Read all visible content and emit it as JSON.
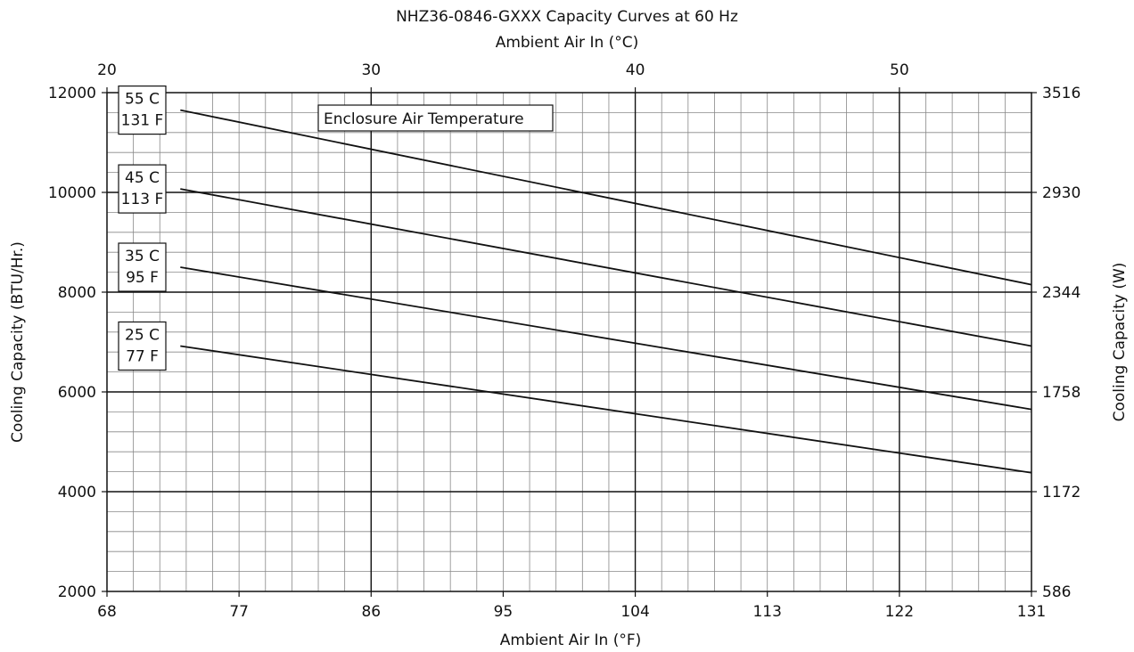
{
  "chart_data": {
    "type": "line",
    "title": "NHZ36-0846-GXXX Capacity Curves at 60 Hz",
    "top_xlabel": "Ambient Air In (°C)",
    "top_ticks": [
      "20",
      "30",
      "40",
      "50"
    ],
    "top_tick_values_f": [
      68,
      86,
      104,
      122
    ],
    "xlabel": "Ambient Air In (°F)",
    "x_ticks": [
      "68",
      "77",
      "86",
      "95",
      "104",
      "113",
      "122",
      "131"
    ],
    "xlim": [
      68,
      131
    ],
    "ylabel": "Cooling Capacity (BTU/Hr.)",
    "y_ticks": [
      "2000",
      "4000",
      "6000",
      "8000",
      "10000",
      "12000"
    ],
    "ylim": [
      2000,
      12000
    ],
    "right_ylabel": "Cooling Capacity (W)",
    "right_ticks": [
      "586",
      "1172",
      "1758",
      "2344",
      "2930",
      "3516"
    ],
    "grid": true,
    "annotation": "Enclosure Air Temperature",
    "series": [
      {
        "name": "55 C\n131 F",
        "x": [
          73,
          131
        ],
        "y": [
          11650,
          8150
        ]
      },
      {
        "name": "45 C\n113 F",
        "x": [
          73,
          131
        ],
        "y": [
          10070,
          6920
        ]
      },
      {
        "name": "35 C\n95 F",
        "x": [
          73,
          131
        ],
        "y": [
          8500,
          5650
        ]
      },
      {
        "name": "25 C\n77 F",
        "x": [
          73,
          131
        ],
        "y": [
          6920,
          4380
        ]
      }
    ],
    "colors": {
      "line": "#111111",
      "grid_major": "#111111",
      "grid_minor": "#888888"
    }
  }
}
